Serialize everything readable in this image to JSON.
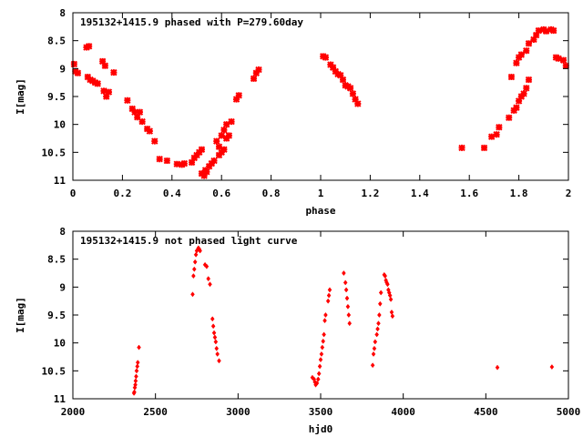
{
  "chart_data": [
    {
      "type": "scatter",
      "title": "195132+1415.9 phased with P=279.60day",
      "xlabel": "phase",
      "ylabel": "I[mag]",
      "xlim": [
        0,
        2
      ],
      "ylim": [
        11,
        8
      ],
      "y_inverted": true,
      "xticks": [
        0,
        0.2,
        0.4,
        0.6,
        0.8,
        1,
        1.2,
        1.4,
        1.6,
        1.8,
        2
      ],
      "xtick_labels": [
        "0",
        "0.2",
        "0.4",
        "0.6",
        "0.8",
        "1",
        "1.2",
        "1.4",
        "1.6",
        "1.8",
        "2"
      ],
      "yticks": [
        8,
        8.5,
        9,
        9.5,
        10,
        10.5,
        11
      ],
      "ytick_labels": [
        "8",
        "8.5",
        "9",
        "9.5",
        "10",
        "10.5",
        "11"
      ],
      "grid": false,
      "marker_color": "#ff0000",
      "marker": "bold-cross",
      "points": [
        [
          0.005,
          8.92
        ],
        [
          0.01,
          9.05
        ],
        [
          0.02,
          9.08
        ],
        [
          0.055,
          8.62
        ],
        [
          0.065,
          8.6
        ],
        [
          0.06,
          9.15
        ],
        [
          0.07,
          9.2
        ],
        [
          0.08,
          9.22
        ],
        [
          0.09,
          9.25
        ],
        [
          0.1,
          9.27
        ],
        [
          0.12,
          8.87
        ],
        [
          0.13,
          8.95
        ],
        [
          0.125,
          9.4
        ],
        [
          0.135,
          9.5
        ],
        [
          0.145,
          9.42
        ],
        [
          0.165,
          9.07
        ],
        [
          0.22,
          9.57
        ],
        [
          0.24,
          9.72
        ],
        [
          0.25,
          9.78
        ],
        [
          0.26,
          9.87
        ],
        [
          0.27,
          9.78
        ],
        [
          0.28,
          9.95
        ],
        [
          0.3,
          10.08
        ],
        [
          0.31,
          10.12
        ],
        [
          0.33,
          10.3
        ],
        [
          0.35,
          10.62
        ],
        [
          0.38,
          10.65
        ],
        [
          0.42,
          10.71
        ],
        [
          0.44,
          10.72
        ],
        [
          0.45,
          10.7
        ],
        [
          0.48,
          10.68
        ],
        [
          0.49,
          10.6
        ],
        [
          0.5,
          10.55
        ],
        [
          0.51,
          10.5
        ],
        [
          0.52,
          10.45
        ],
        [
          0.52,
          10.88
        ],
        [
          0.53,
          10.92
        ],
        [
          0.535,
          10.82
        ],
        [
          0.54,
          10.85
        ],
        [
          0.55,
          10.75
        ],
        [
          0.56,
          10.7
        ],
        [
          0.57,
          10.65
        ],
        [
          0.58,
          10.3
        ],
        [
          0.59,
          10.4
        ],
        [
          0.6,
          10.2
        ],
        [
          0.61,
          10.1
        ],
        [
          0.62,
          10.0
        ],
        [
          0.59,
          10.55
        ],
        [
          0.6,
          10.5
        ],
        [
          0.61,
          10.45
        ],
        [
          0.62,
          10.25
        ],
        [
          0.63,
          10.2
        ],
        [
          0.64,
          9.95
        ],
        [
          0.66,
          9.55
        ],
        [
          0.67,
          9.48
        ],
        [
          0.73,
          9.18
        ],
        [
          0.74,
          9.08
        ],
        [
          0.75,
          9.02
        ],
        [
          1.01,
          8.78
        ],
        [
          1.02,
          8.8
        ],
        [
          1.04,
          8.93
        ],
        [
          1.05,
          8.98
        ],
        [
          1.06,
          9.05
        ],
        [
          1.07,
          9.1
        ],
        [
          1.08,
          9.12
        ],
        [
          1.09,
          9.2
        ],
        [
          1.1,
          9.3
        ],
        [
          1.11,
          9.32
        ],
        [
          1.12,
          9.35
        ],
        [
          1.13,
          9.45
        ],
        [
          1.14,
          9.55
        ],
        [
          1.15,
          9.63
        ],
        [
          1.57,
          10.42
        ],
        [
          1.66,
          10.42
        ],
        [
          1.69,
          10.22
        ],
        [
          1.71,
          10.18
        ],
        [
          1.72,
          10.05
        ],
        [
          1.76,
          9.88
        ],
        [
          1.78,
          9.75
        ],
        [
          1.79,
          9.7
        ],
        [
          1.8,
          9.58
        ],
        [
          1.81,
          9.5
        ],
        [
          1.82,
          9.45
        ],
        [
          1.83,
          9.35
        ],
        [
          1.84,
          9.2
        ],
        [
          1.77,
          9.15
        ],
        [
          1.79,
          8.9
        ],
        [
          1.8,
          8.8
        ],
        [
          1.81,
          8.75
        ],
        [
          1.83,
          8.68
        ],
        [
          1.84,
          8.55
        ],
        [
          1.86,
          8.48
        ],
        [
          1.87,
          8.4
        ],
        [
          1.88,
          8.32
        ],
        [
          1.9,
          8.3
        ],
        [
          1.91,
          8.33
        ],
        [
          1.93,
          8.3
        ],
        [
          1.94,
          8.32
        ],
        [
          1.95,
          8.8
        ],
        [
          1.96,
          8.82
        ],
        [
          1.98,
          8.85
        ],
        [
          1.99,
          8.95
        ]
      ]
    },
    {
      "type": "scatter",
      "title": "195132+1415.9 not phased light curve",
      "xlabel": "hjd0",
      "ylabel": "I[mag]",
      "xlim": [
        2000,
        5000
      ],
      "ylim": [
        11,
        8
      ],
      "y_inverted": true,
      "xticks": [
        2000,
        2500,
        3000,
        3500,
        4000,
        4500,
        5000
      ],
      "xtick_labels": [
        "2000",
        "2500",
        "3000",
        "3500",
        "4000",
        "4500",
        "5000"
      ],
      "yticks": [
        8,
        8.5,
        9,
        9.5,
        10,
        10.5,
        11
      ],
      "ytick_labels": [
        "8",
        "8.5",
        "9",
        "9.5",
        "10",
        "10.5",
        "11"
      ],
      "grid": false,
      "marker_color": "#ff0000",
      "marker": "small-diamond",
      "points": [
        [
          2370,
          10.9
        ],
        [
          2372,
          10.88
        ],
        [
          2375,
          10.8
        ],
        [
          2378,
          10.75
        ],
        [
          2380,
          10.68
        ],
        [
          2383,
          10.6
        ],
        [
          2386,
          10.5
        ],
        [
          2390,
          10.42
        ],
        [
          2393,
          10.35
        ],
        [
          2400,
          10.08
        ],
        [
          2725,
          9.13
        ],
        [
          2730,
          8.8
        ],
        [
          2735,
          8.68
        ],
        [
          2740,
          8.55
        ],
        [
          2745,
          8.42
        ],
        [
          2750,
          8.35
        ],
        [
          2760,
          8.3
        ],
        [
          2765,
          8.32
        ],
        [
          2770,
          8.35
        ],
        [
          2800,
          8.6
        ],
        [
          2810,
          8.63
        ],
        [
          2820,
          8.85
        ],
        [
          2830,
          8.95
        ],
        [
          2845,
          9.57
        ],
        [
          2850,
          9.7
        ],
        [
          2855,
          9.82
        ],
        [
          2860,
          9.9
        ],
        [
          2865,
          9.98
        ],
        [
          2870,
          10.1
        ],
        [
          2875,
          10.2
        ],
        [
          2885,
          10.32
        ],
        [
          3450,
          10.62
        ],
        [
          3460,
          10.65
        ],
        [
          3465,
          10.7
        ],
        [
          3470,
          10.75
        ],
        [
          3478,
          10.72
        ],
        [
          3485,
          10.65
        ],
        [
          3490,
          10.55
        ],
        [
          3495,
          10.42
        ],
        [
          3500,
          10.3
        ],
        [
          3505,
          10.2
        ],
        [
          3510,
          10.08
        ],
        [
          3515,
          9.97
        ],
        [
          3520,
          9.85
        ],
        [
          3525,
          9.6
        ],
        [
          3530,
          9.5
        ],
        [
          3545,
          9.25
        ],
        [
          3550,
          9.15
        ],
        [
          3555,
          9.05
        ],
        [
          3640,
          8.75
        ],
        [
          3650,
          8.92
        ],
        [
          3655,
          9.05
        ],
        [
          3660,
          9.2
        ],
        [
          3665,
          9.35
        ],
        [
          3670,
          9.5
        ],
        [
          3675,
          9.65
        ],
        [
          3815,
          10.4
        ],
        [
          3820,
          10.2
        ],
        [
          3825,
          10.1
        ],
        [
          3830,
          9.98
        ],
        [
          3840,
          9.85
        ],
        [
          3845,
          9.75
        ],
        [
          3850,
          9.65
        ],
        [
          3855,
          9.5
        ],
        [
          3860,
          9.3
        ],
        [
          3865,
          9.1
        ],
        [
          3885,
          8.78
        ],
        [
          3890,
          8.8
        ],
        [
          3895,
          8.88
        ],
        [
          3900,
          8.92
        ],
        [
          3905,
          8.95
        ],
        [
          3910,
          9.05
        ],
        [
          3915,
          9.1
        ],
        [
          3920,
          9.15
        ],
        [
          3925,
          9.22
        ],
        [
          3930,
          9.45
        ],
        [
          3935,
          9.52
        ],
        [
          4570,
          10.44
        ],
        [
          4900,
          10.43
        ]
      ]
    }
  ]
}
